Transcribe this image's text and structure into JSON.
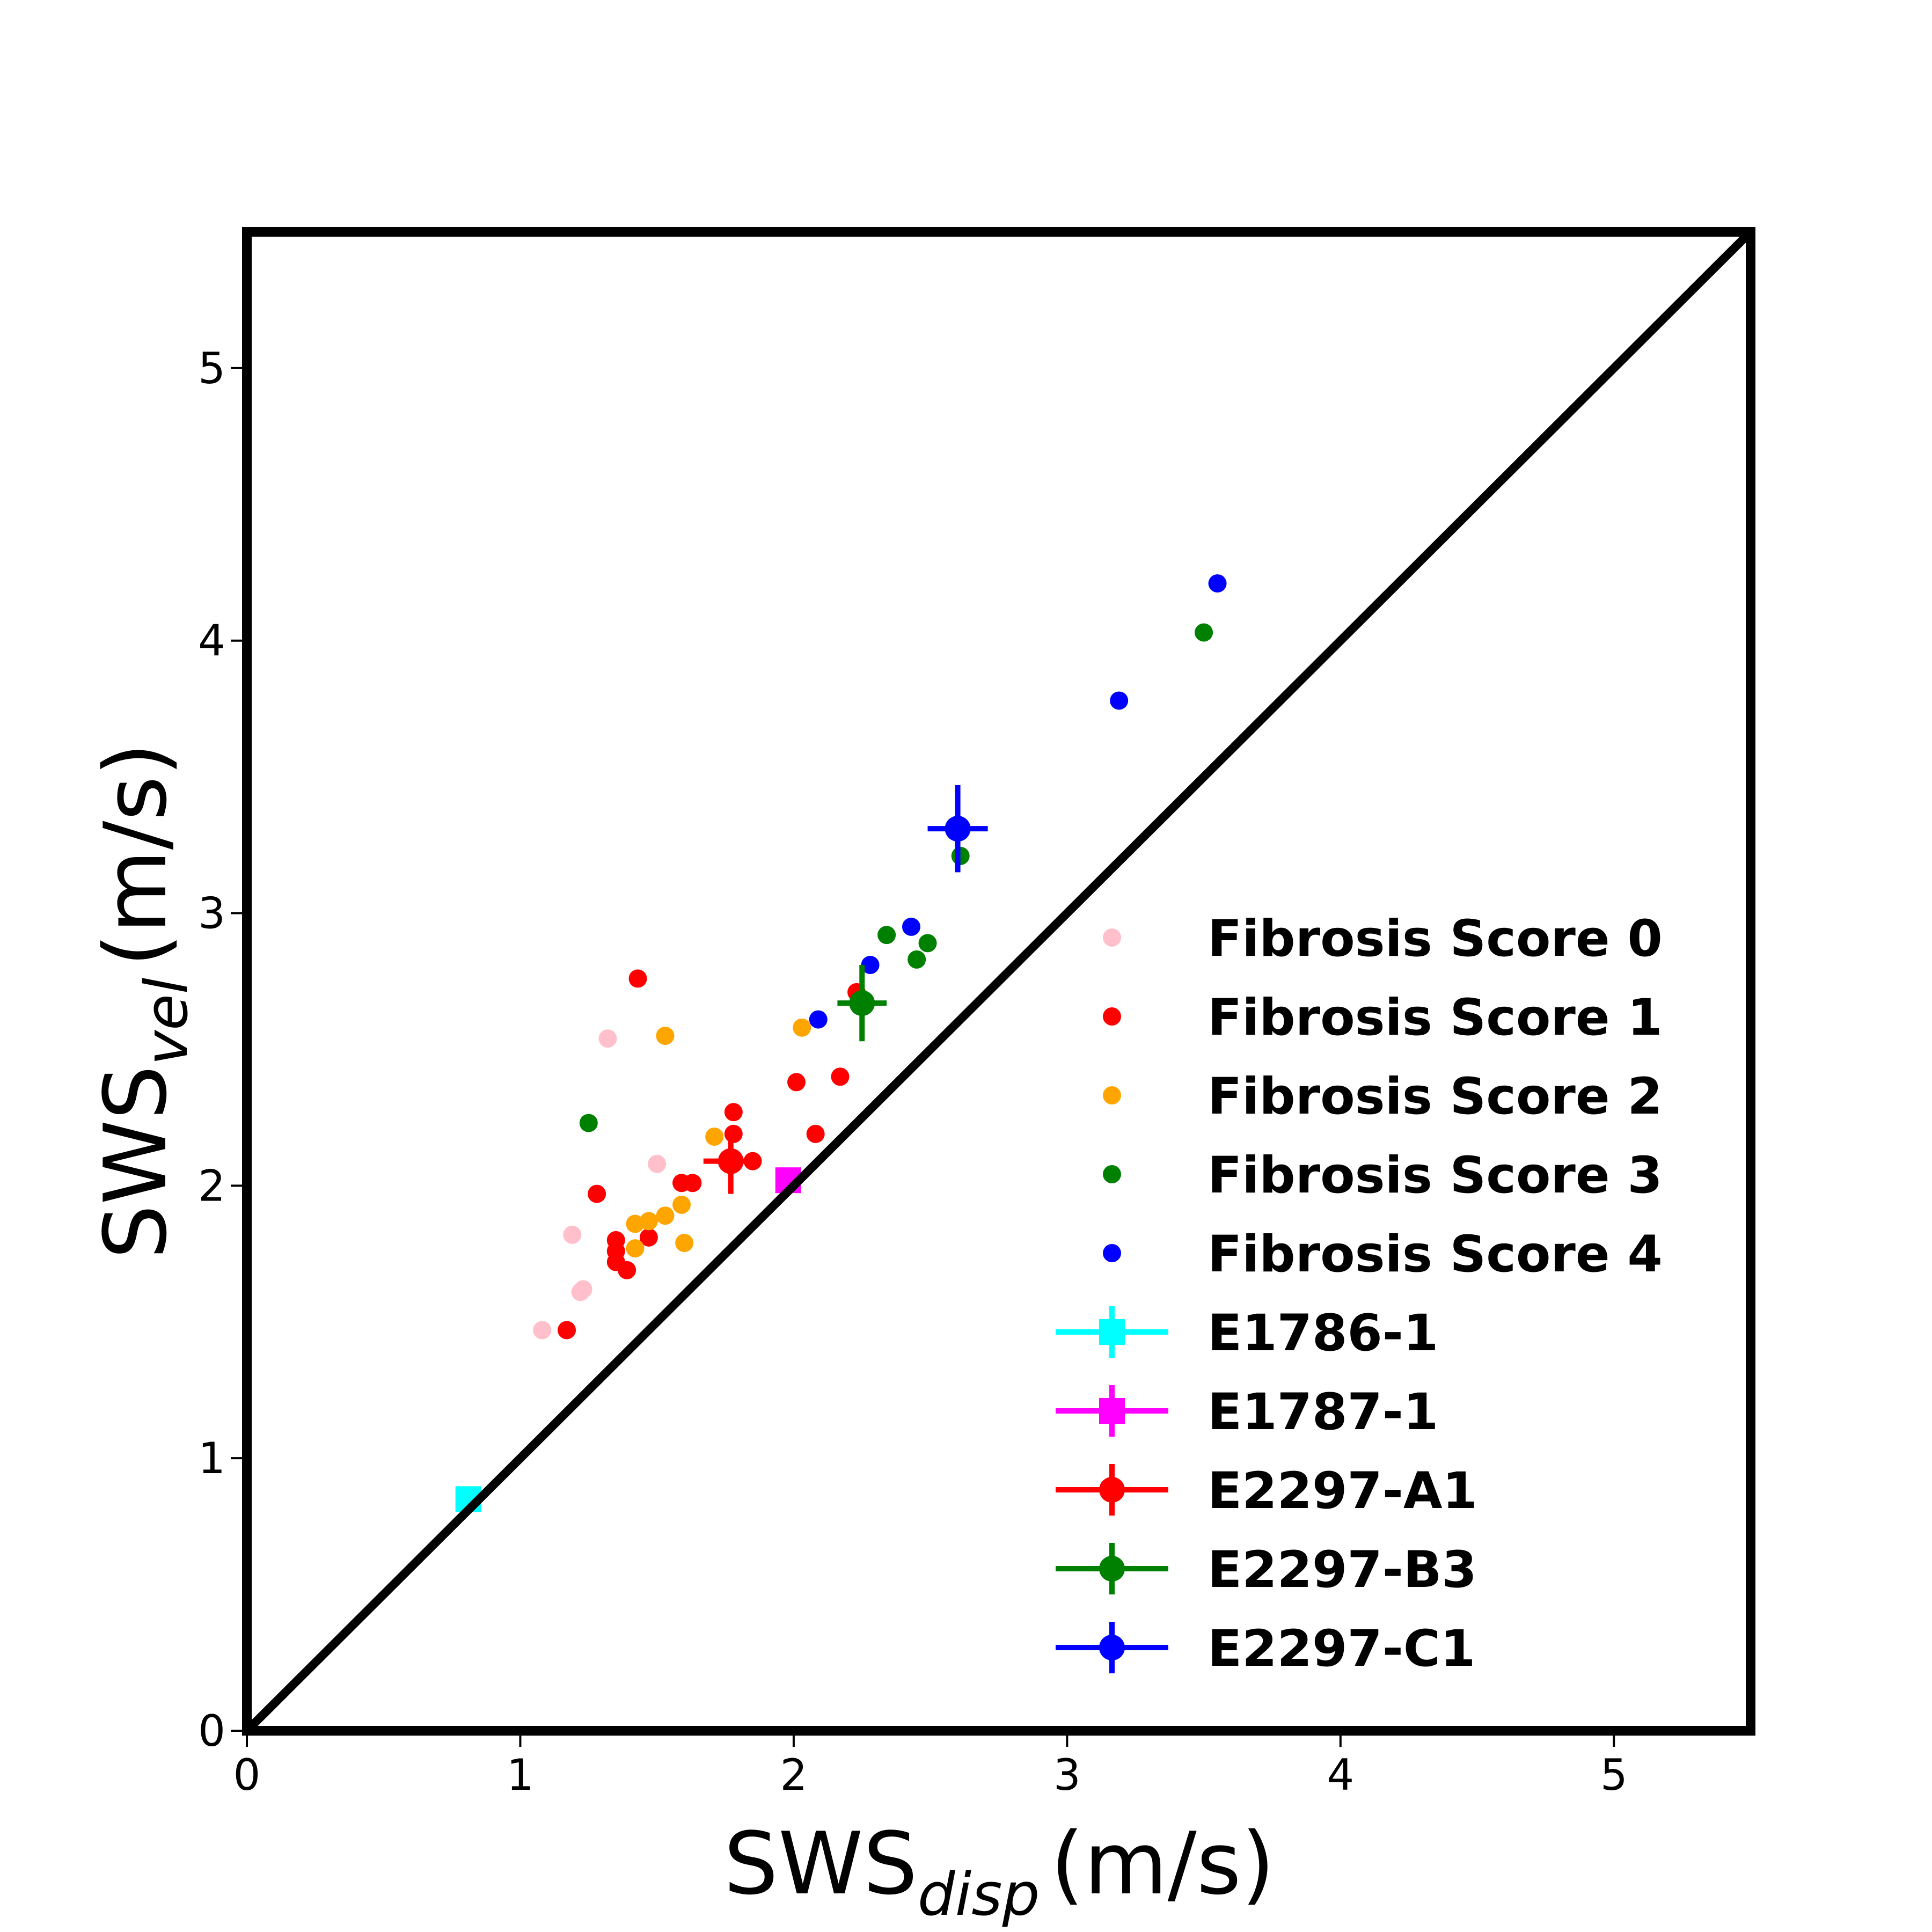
{
  "chart_data": {
    "type": "scatter",
    "title": "",
    "xlabel": {
      "main": "SWS",
      "sub": "disp",
      "unit": "(m/s)"
    },
    "ylabel": {
      "main": "SWS",
      "sub": "vel",
      "unit": "(m/s)"
    },
    "xlim": [
      0,
      5.5
    ],
    "ylim": [
      0,
      5.5
    ],
    "x_ticks": [
      "0",
      "1",
      "2",
      "3",
      "4",
      "5"
    ],
    "y_ticks": [
      "0",
      "1",
      "2",
      "3",
      "4",
      "5"
    ],
    "grid": false,
    "identity_line": true,
    "legend_position": "lower-right",
    "series": [
      {
        "name": "Fibrosis Score 0",
        "color": "#ffc0cb",
        "marker": "circle",
        "points": [
          [
            1.08,
            1.47
          ],
          [
            1.19,
            1.82
          ],
          [
            1.22,
            1.61
          ],
          [
            1.23,
            1.62
          ],
          [
            1.32,
            2.54
          ],
          [
            1.5,
            2.08
          ]
        ]
      },
      {
        "name": "Fibrosis Score 1",
        "color": "#ff0000",
        "marker": "circle",
        "points": [
          [
            1.17,
            1.47
          ],
          [
            1.28,
            1.97
          ],
          [
            1.35,
            1.72
          ],
          [
            1.35,
            1.76
          ],
          [
            1.35,
            1.8
          ],
          [
            1.39,
            1.69
          ],
          [
            1.43,
            2.76
          ],
          [
            1.47,
            1.81
          ],
          [
            1.59,
            2.01
          ],
          [
            1.63,
            2.01
          ],
          [
            1.78,
            2.19
          ],
          [
            1.78,
            2.27
          ],
          [
            1.85,
            2.09
          ],
          [
            2.01,
            2.38
          ],
          [
            2.08,
            2.19
          ],
          [
            2.17,
            2.4
          ],
          [
            2.23,
            2.71
          ]
        ]
      },
      {
        "name": "Fibrosis Score 2",
        "color": "#ffa500",
        "marker": "circle",
        "points": [
          [
            1.42,
            1.86
          ],
          [
            1.42,
            1.77
          ],
          [
            1.47,
            1.87
          ],
          [
            1.53,
            1.89
          ],
          [
            1.59,
            1.93
          ],
          [
            1.6,
            1.79
          ],
          [
            1.53,
            2.55
          ],
          [
            1.71,
            2.18
          ],
          [
            2.03,
            2.58
          ]
        ]
      },
      {
        "name": "Fibrosis Score 3",
        "color": "#008000",
        "marker": "circle",
        "points": [
          [
            1.25,
            2.23
          ],
          [
            2.34,
            2.92
          ],
          [
            2.45,
            2.83
          ],
          [
            2.49,
            2.89
          ],
          [
            2.61,
            3.21
          ],
          [
            3.5,
            4.03
          ]
        ]
      },
      {
        "name": "Fibrosis Score 4",
        "color": "#0000ff",
        "marker": "circle",
        "points": [
          [
            2.09,
            2.61
          ],
          [
            2.28,
            2.81
          ],
          [
            2.43,
            2.95
          ],
          [
            3.19,
            3.78
          ],
          [
            3.55,
            4.21
          ]
        ]
      }
    ],
    "error_series": [
      {
        "name": "E1786-1",
        "color": "#00ffff",
        "marker": "square",
        "x": 0.81,
        "y": 0.85,
        "xerr": 0.02,
        "yerr": 0.02
      },
      {
        "name": "E1787-1",
        "color": "#ff00ff",
        "marker": "square",
        "x": 1.98,
        "y": 2.02,
        "xerr": 0.02,
        "yerr": 0.02
      },
      {
        "name": "E2297-A1",
        "color": "#ff0000",
        "marker": "circle",
        "x": 1.77,
        "y": 2.09,
        "xerr": 0.1,
        "yerr": 0.12
      },
      {
        "name": "E2297-B3",
        "color": "#008000",
        "marker": "circle",
        "x": 2.25,
        "y": 2.67,
        "xerr": 0.09,
        "yerr": 0.14
      },
      {
        "name": "E2297-C1",
        "color": "#0000ff",
        "marker": "circle",
        "x": 2.6,
        "y": 3.31,
        "xerr": 0.11,
        "yerr": 0.16
      }
    ]
  }
}
